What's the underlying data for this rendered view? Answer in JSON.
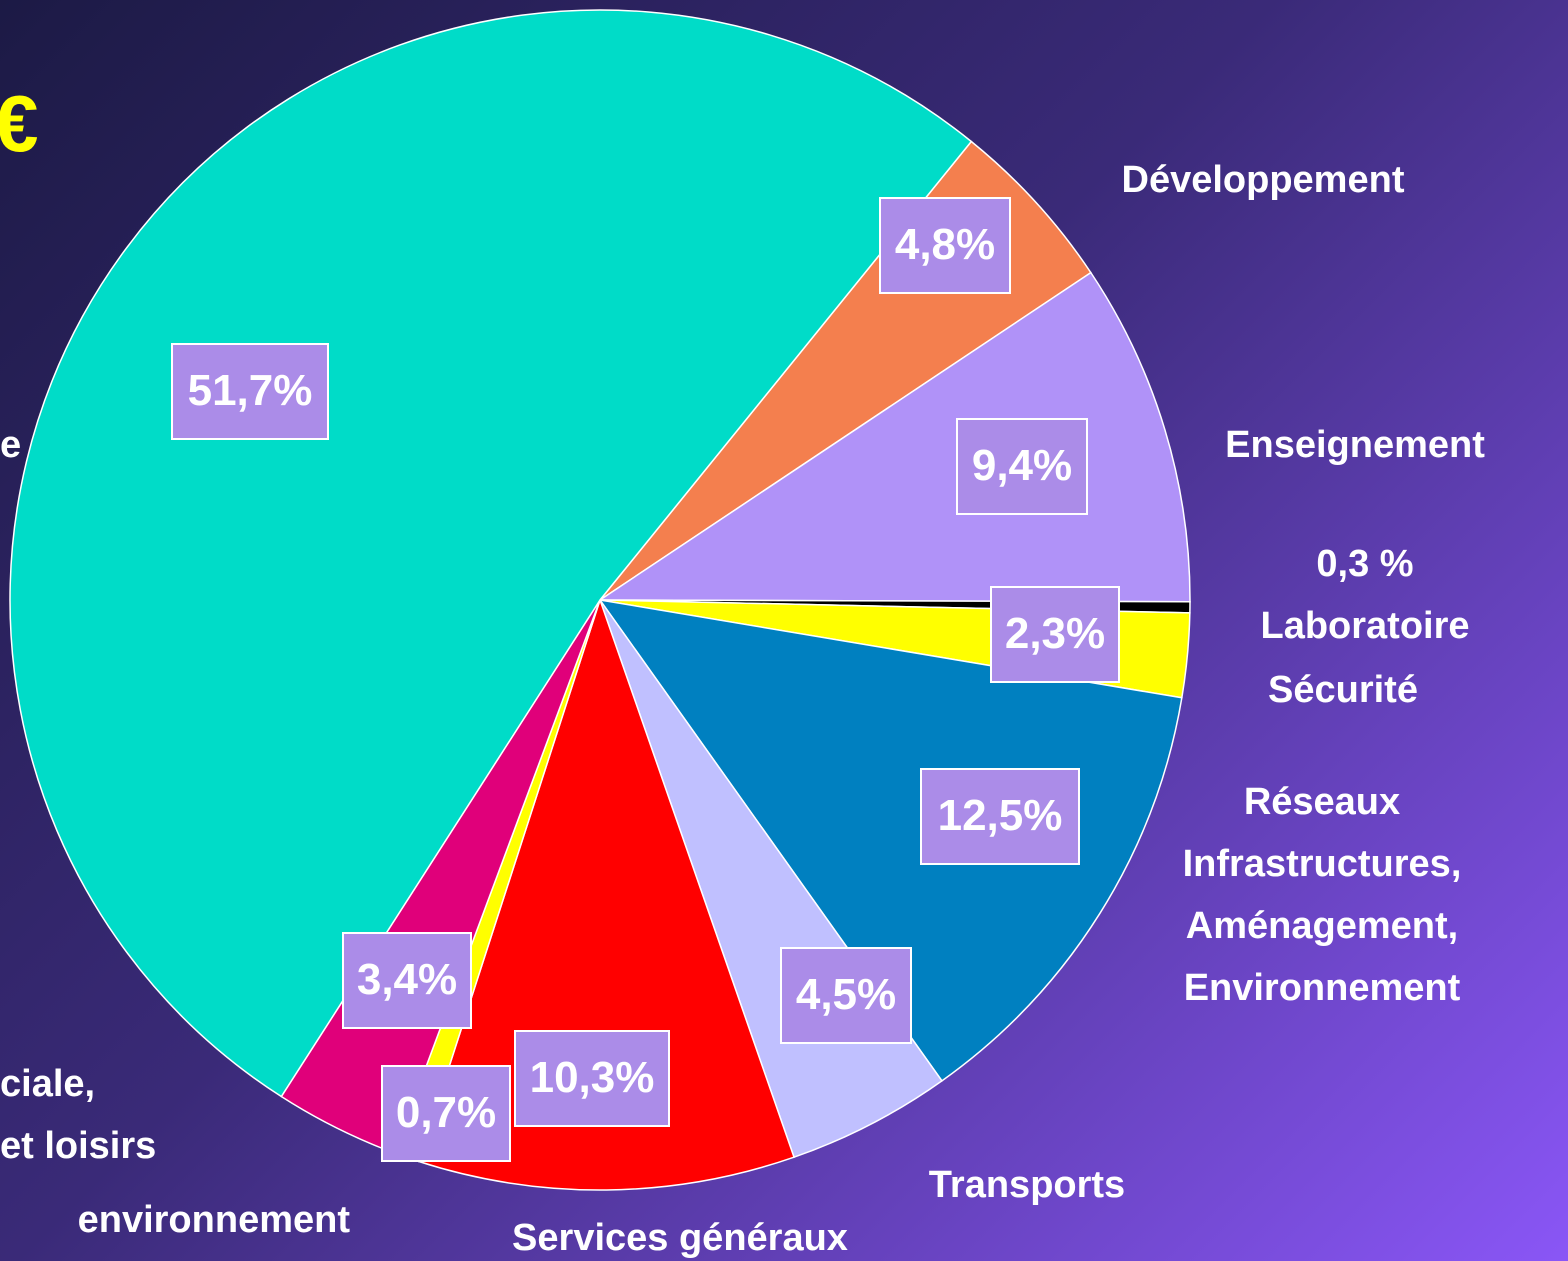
{
  "chart_data": {
    "type": "pie",
    "title": "€",
    "categories": [
      "Développement",
      "Enseignement",
      "0,3 % Laboratoire",
      "Sécurité",
      "Réseaux\nInfrastructures,\nAménagement,\nEnvironnement",
      "Transports",
      "Services généraux",
      "environnement",
      "ciale,\net loisirs",
      "e"
    ],
    "values": [
      4.8,
      9.4,
      0.3,
      2.3,
      12.5,
      4.5,
      10.3,
      0.7,
      3.4,
      51.7
    ],
    "value_labels": [
      "4,8%",
      "9,4%",
      null,
      "2,3%",
      "12,5%",
      "4,5%",
      "10,3%",
      "0,7%",
      "3,4%",
      "51,7%"
    ],
    "colors": [
      "#f47f4e",
      "#b092f8",
      "#000000",
      "#ffff00",
      "#0080c0",
      "#c0c0ff",
      "#ff0000",
      "#ffff00",
      "#e0007a",
      "#00dcc8"
    ]
  }
}
